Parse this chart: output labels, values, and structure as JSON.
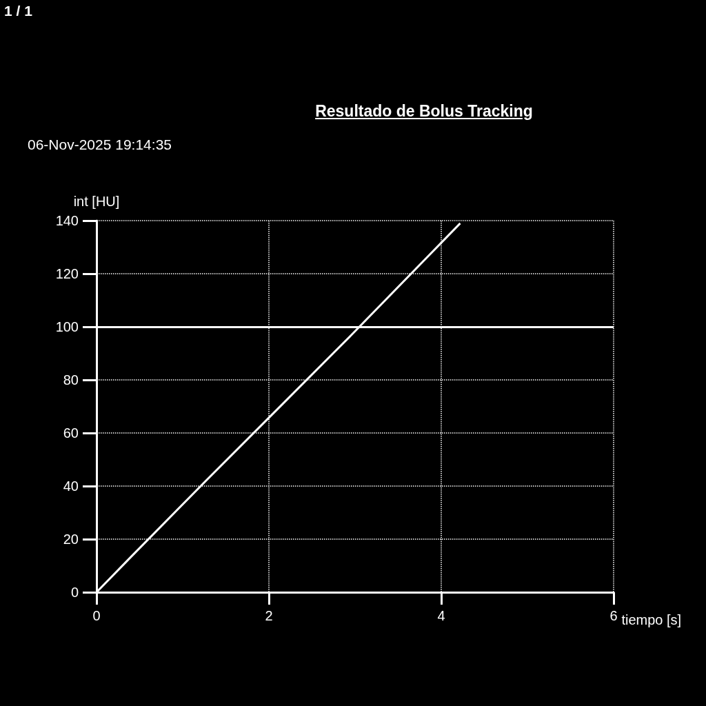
{
  "chart_data": {
    "type": "line",
    "title": "Resultado de Bolus Tracking",
    "subtitle": "06-Nov-2025 19:14:35",
    "xlabel": "tiempo [s]",
    "ylabel": "int [HU]",
    "annotations": [
      "1 / 1"
    ],
    "series": [
      {
        "color": "#ffffff",
        "x": [
          0,
          0.42,
          1.27,
          2.1,
          2.96,
          3.8,
          4.22
        ],
        "values": [
          0,
          14,
          42,
          69,
          97,
          125,
          139
        ]
      }
    ],
    "xlim": [
      0,
      6
    ],
    "xticks": [
      0,
      2,
      4,
      6
    ],
    "ylim": [
      0,
      140
    ],
    "yticks": [
      0,
      20,
      40,
      60,
      80,
      100,
      120,
      140
    ],
    "ref_lines": [
      {
        "axis": "y",
        "value": 100,
        "color": "#ffffff",
        "line_style": "solid"
      }
    ],
    "grid": true
  }
}
